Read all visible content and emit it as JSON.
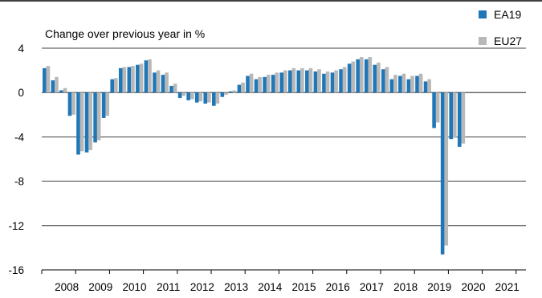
{
  "chart_data": {
    "type": "bar",
    "ylabel": "Change over previous year in %",
    "ylim": [
      -16,
      4
    ],
    "yticks": [
      "4",
      "0",
      "-4",
      "-8",
      "-12",
      "-16"
    ],
    "years": [
      "2008",
      "2009",
      "2010",
      "2011",
      "2012",
      "2013",
      "2014",
      "2015",
      "2016",
      "2017",
      "2018",
      "2019",
      "2020",
      "2021"
    ],
    "quarters_per_year": 4,
    "grid": "horizontal",
    "legend": "top-right",
    "series": [
      {
        "name": "EA19",
        "color": "#1f77b8",
        "values": [
          2.2,
          1.1,
          0.2,
          -2.1,
          -5.6,
          -5.4,
          -4.5,
          -2.3,
          1.2,
          2.2,
          2.3,
          2.5,
          2.9,
          1.8,
          1.6,
          0.6,
          -0.5,
          -0.7,
          -0.9,
          -1.0,
          -1.2,
          -0.4,
          0.1,
          0.7,
          1.5,
          1.2,
          1.4,
          1.6,
          1.8,
          2.0,
          2.0,
          2.0,
          1.9,
          1.7,
          1.8,
          2.1,
          2.6,
          3.0,
          3.0,
          2.5,
          2.1,
          1.2,
          1.5,
          1.2,
          1.5,
          1.0,
          -3.2,
          -14.6,
          -4.2,
          -4.9
        ]
      },
      {
        "name": "EU27",
        "color": "#b8b8b8",
        "values": [
          2.4,
          1.4,
          0.4,
          -2.0,
          -5.3,
          -5.2,
          -4.3,
          -2.1,
          1.3,
          2.3,
          2.4,
          2.6,
          3.0,
          2.0,
          1.8,
          0.8,
          -0.3,
          -0.6,
          -0.8,
          -0.9,
          -1.0,
          -0.2,
          0.2,
          0.9,
          1.7,
          1.4,
          1.6,
          1.8,
          2.0,
          2.2,
          2.2,
          2.2,
          2.1,
          1.9,
          2.0,
          2.3,
          2.8,
          3.2,
          3.2,
          2.7,
          2.3,
          1.6,
          1.7,
          1.5,
          1.7,
          1.2,
          -2.7,
          -13.8,
          -4.1,
          -4.6
        ]
      }
    ]
  }
}
